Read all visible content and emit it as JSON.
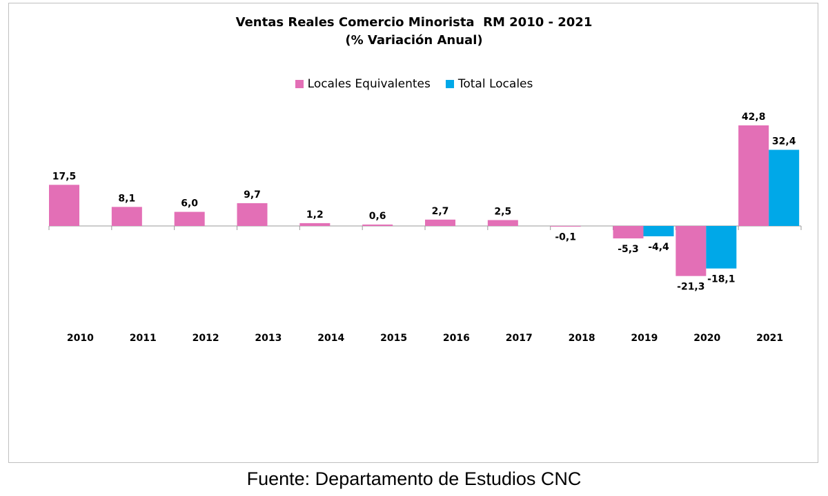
{
  "chart_data": {
    "type": "bar",
    "title": "Ventas Reales Comercio Minorista  RM 2010 - 2021",
    "subtitle": "(% Variación Anual)",
    "categories": [
      "2010",
      "2011",
      "2012",
      "2013",
      "2014",
      "2015",
      "2016",
      "2017",
      "2018",
      "2019",
      "2020",
      "2021"
    ],
    "series": [
      {
        "name": "Locales Equivalentes",
        "color": "#e36fb6",
        "values": [
          17.5,
          8.1,
          6.0,
          9.7,
          1.2,
          0.6,
          2.7,
          2.5,
          -0.1,
          -5.3,
          -21.3,
          42.8
        ],
        "labels": [
          "17,5",
          "8,1",
          "6,0",
          "9,7",
          "1,2",
          "0,6",
          "2,7",
          "2,5",
          "-0,1",
          "-5,3",
          "-21,3",
          "42,8"
        ]
      },
      {
        "name": "Total Locales",
        "color": "#00a8e8",
        "values": [
          null,
          null,
          null,
          null,
          null,
          null,
          null,
          null,
          null,
          -4.4,
          -18.1,
          32.4
        ],
        "labels": [
          "",
          "",
          "",
          "",
          "",
          "",
          "",
          "",
          "",
          "-4,4",
          "-18,1",
          "32,4"
        ]
      }
    ],
    "legend_position": "top-center",
    "grid": false,
    "xlabel": "",
    "ylabel": ""
  },
  "source": "Fuente: Departamento de Estudios CNC"
}
